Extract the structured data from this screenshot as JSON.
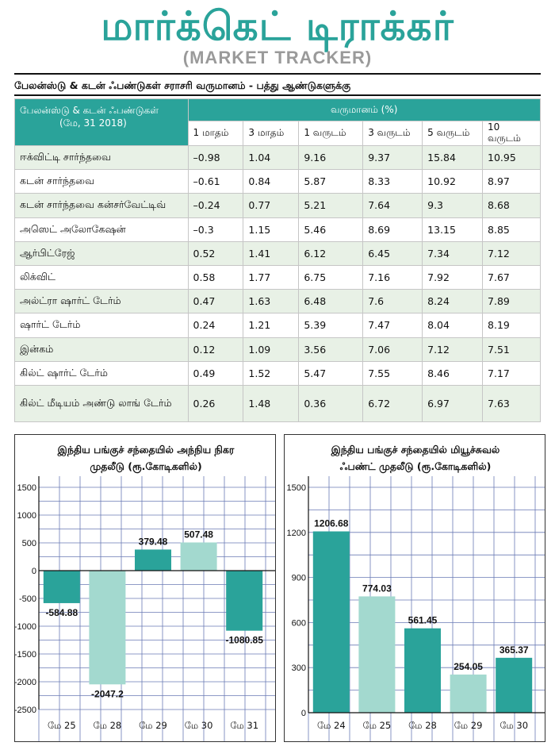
{
  "header": {
    "title": "மார்க்கெட் டிராக்கர்",
    "subtitle": "(MARKET TRACKER)"
  },
  "table": {
    "caption": "பேலன்ஸ்டு & கடன் ஃபண்டுகள் சராசரி வருமானம் - பத்து ஆண்டுகளுக்கு",
    "fund_header_line1": "பேலன்ஸ்டு & கடன் ஃபண்டுகள்",
    "fund_header_line2": "(மே, 31 2018)",
    "returns_header": "வருமானம் (%)",
    "periods": [
      "1 மாதம்",
      "3 மாதம்",
      "1 வருடம்",
      "3 வருடம்",
      "5 வருடம்",
      "10 வருடம்"
    ],
    "rows": [
      {
        "name": "ஈக்விட்டி சார்ந்தவை",
        "values": [
          "–0.98",
          "1.04",
          "9.16",
          "9.37",
          "15.84",
          "10.95"
        ]
      },
      {
        "name": "கடன் சார்ந்தவை",
        "values": [
          "–0.61",
          "0.84",
          "5.87",
          "8.33",
          "10.92",
          "8.97"
        ]
      },
      {
        "name": "கடன் சார்ந்தவை கன்சர்வேட்டிவ்",
        "values": [
          "–0.24",
          "0.77",
          "5.21",
          "7.64",
          "9.3",
          "8.68"
        ]
      },
      {
        "name": "அஸெட் அலோகேஷன்",
        "values": [
          "–0.3",
          "1.15",
          "5.46",
          "8.69",
          "13.15",
          "8.85"
        ]
      },
      {
        "name": "ஆர்பிட்ரேஜ்",
        "values": [
          "0.52",
          "1.41",
          "6.12",
          "6.45",
          "7.34",
          "7.12"
        ]
      },
      {
        "name": "லிக்விட்",
        "values": [
          "0.58",
          "1.77",
          "6.75",
          "7.16",
          "7.92",
          "7.67"
        ]
      },
      {
        "name": "அல்ட்ரா ஷார்ட் டேர்ம்",
        "values": [
          "0.47",
          "1.63",
          "6.48",
          "7.6",
          "8.24",
          "7.89"
        ]
      },
      {
        "name": "ஷார்ட் டேர்ம்",
        "values": [
          "0.24",
          "1.21",
          "5.39",
          "7.47",
          "8.04",
          "8.19"
        ]
      },
      {
        "name": "இன்கம்",
        "values": [
          "0.12",
          "1.09",
          "3.56",
          "7.06",
          "7.12",
          "7.51"
        ]
      },
      {
        "name": "கில்ட் ஷார்ட் டேர்ம்",
        "values": [
          "0.49",
          "1.52",
          "5.47",
          "7.55",
          "8.46",
          "7.17"
        ]
      },
      {
        "name": "கில்ட் மீடியம் அண்டு லாங் டேர்ம்",
        "values": [
          "0.26",
          "1.48",
          "0.36",
          "6.72",
          "6.97",
          "7.63"
        ]
      }
    ]
  },
  "colors": {
    "accent": "#2aa39a",
    "bar_dark": "#2aa39a",
    "bar_light": "#a3d9cf",
    "grid": "#6a7ab5",
    "row_shade": "#e8f1e6",
    "subtitle_gray": "#9a9a9a"
  },
  "chart_data": [
    {
      "type": "bar",
      "title_line1": "இந்திய பங்குச் சந்தையில் அந்நிய நிகர",
      "title_line2": "முதலீடு (ரூ.கோடிகளில்)",
      "categories": [
        "மே 25",
        "மே 28",
        "மே 29",
        "மே 30",
        "மே 31"
      ],
      "values": [
        -584.88,
        -2047.2,
        379.48,
        507.48,
        -1080.85
      ],
      "value_labels": [
        "-584.88",
        "-2047.2",
        "379.48",
        "507.48",
        "-1080.85"
      ],
      "bar_shades": [
        "dark",
        "light",
        "dark",
        "light",
        "dark"
      ],
      "ylim": [
        -2500,
        1500
      ],
      "yticks": [
        1500,
        1000,
        500,
        0,
        -500,
        -1000,
        -1500,
        -2000,
        -2500
      ],
      "grid": true
    },
    {
      "type": "bar",
      "title_line1": "இந்திய பங்குச் சந்தையில் மியூச்சுவல்",
      "title_line2": "ஃபண்ட் முதலீடு (ரூ.கோடிகளில்)",
      "categories": [
        "மே 24",
        "மே 25",
        "மே 28",
        "மே 29",
        "மே 30"
      ],
      "values": [
        1206.68,
        774.03,
        561.45,
        254.05,
        365.37
      ],
      "value_labels": [
        "1206.68",
        "774.03",
        "561.45",
        "254.05",
        "365.37"
      ],
      "bar_shades": [
        "dark",
        "light",
        "dark",
        "light",
        "dark"
      ],
      "ylim": [
        0,
        1500
      ],
      "yticks": [
        1500,
        1200,
        900,
        600,
        300,
        0
      ],
      "grid": true
    }
  ]
}
